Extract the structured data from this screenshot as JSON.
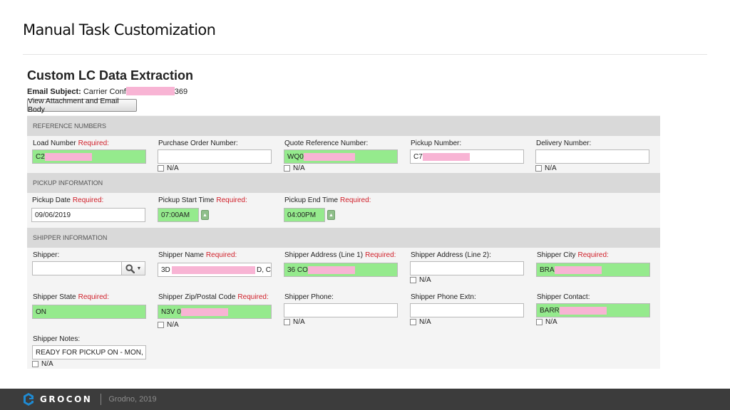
{
  "slide": {
    "title": "Manual Task Customization"
  },
  "app": {
    "title": "Custom LC Data Extraction",
    "email_subject_label": "Email Subject:",
    "email_subject_prefix": "Carrier Conf",
    "email_subject_suffix": "369",
    "view_button": "View Attachment and Email Body"
  },
  "common": {
    "required": "Required:",
    "na": "N/A"
  },
  "sections": {
    "reference": "REFERENCE NUMBERS",
    "pickup": "PICKUP INFORMATION",
    "shipper": "SHIPPER INFORMATION"
  },
  "reference": {
    "load_number": {
      "label": "Load Number",
      "value": "C2"
    },
    "purchase_order": {
      "label": "Purchase Order Number:",
      "value": ""
    },
    "quote_reference": {
      "label": "Quote Reference Number:",
      "value": "WQ0"
    },
    "pickup_number": {
      "label": "Pickup Number:",
      "value": "C7"
    },
    "delivery_number": {
      "label": "Delivery Number:",
      "value": ""
    }
  },
  "pickup": {
    "date": {
      "label": "Pickup Date",
      "value": "09/06/2019"
    },
    "start_time": {
      "label": "Pickup Start Time",
      "value": "07:00AM"
    },
    "end_time": {
      "label": "Pickup End Time",
      "value": "04:00PM"
    }
  },
  "shipper": {
    "shipper": {
      "label": "Shipper:",
      "value": ""
    },
    "name": {
      "label": "Shipper Name",
      "value_prefix": "3D",
      "value_suffix": "D, C"
    },
    "address1": {
      "label": "Shipper Address (Line 1)",
      "value": "36 CO"
    },
    "address2": {
      "label": "Shipper Address (Line 2):",
      "value": ""
    },
    "city": {
      "label": "Shipper City",
      "value": "BRA"
    },
    "state": {
      "label": "Shipper State",
      "value": "ON"
    },
    "zip": {
      "label": "Shipper Zip/Postal Code",
      "value": "N3V 0"
    },
    "phone": {
      "label": "Shipper Phone:",
      "value": ""
    },
    "phone_ext": {
      "label": "Shipper Phone Extn:",
      "value": ""
    },
    "contact": {
      "label": "Shipper Contact:",
      "value": "BARR"
    },
    "notes": {
      "label": "Shipper Notes:",
      "value": "READY FOR PICKUP ON - MON, S"
    }
  },
  "footer": {
    "brand": "GROCON",
    "caption": "Grodno, 2019"
  },
  "colors": {
    "required": "#d0202a",
    "filled": "#95ea8d",
    "section_bar": "#d9d9d9",
    "footer": "#3c3c3c"
  },
  "icons": [
    "search-icon",
    "chevron-down-icon",
    "spinner-icon",
    "grocon-logo-icon"
  ]
}
